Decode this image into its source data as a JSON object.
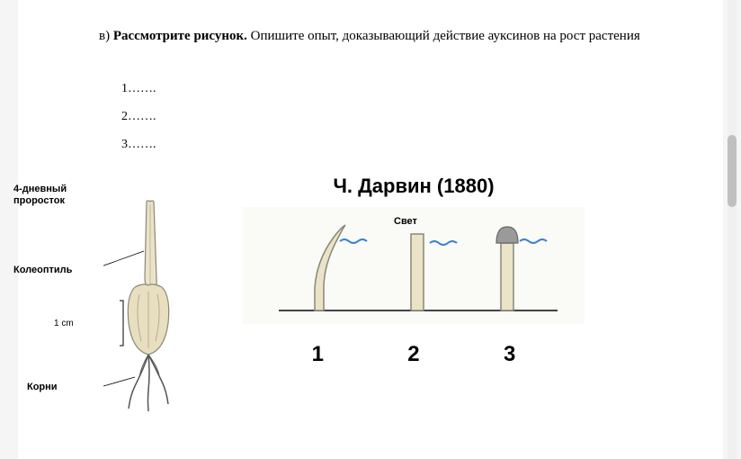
{
  "question": {
    "prefix": "в) ",
    "bold_part": "Рассмотрите рисунок.",
    "rest": " Опишите опыт, доказывающий действие ауксинов на  рост растения"
  },
  "fill_lines": {
    "line1": "1…….",
    "line2": "2…….",
    "line3": "3……."
  },
  "seedling_labels": {
    "four_day": "4-дневный\nпроросток",
    "coleoptile": "Колеоптиль",
    "scale": "1 cm",
    "roots": "Корни"
  },
  "darwin": {
    "title": "Ч. Дарвин (1880)",
    "light_label": "Свет",
    "numbers": [
      "1",
      "2",
      "3"
    ]
  },
  "colors": {
    "background": "#f5f5f5",
    "page": "#ffffff",
    "text": "#000000",
    "seedling_fill": "#ebe3c8",
    "seedling_stroke": "#888878",
    "seed_fill": "#e8dfc0",
    "wave_color": "#3a7fd4",
    "wave_color2": "#2a6fc4",
    "ground_line": "#444444",
    "cap_fill": "#9a9a9a",
    "panel_bg": "#fafaf7"
  }
}
